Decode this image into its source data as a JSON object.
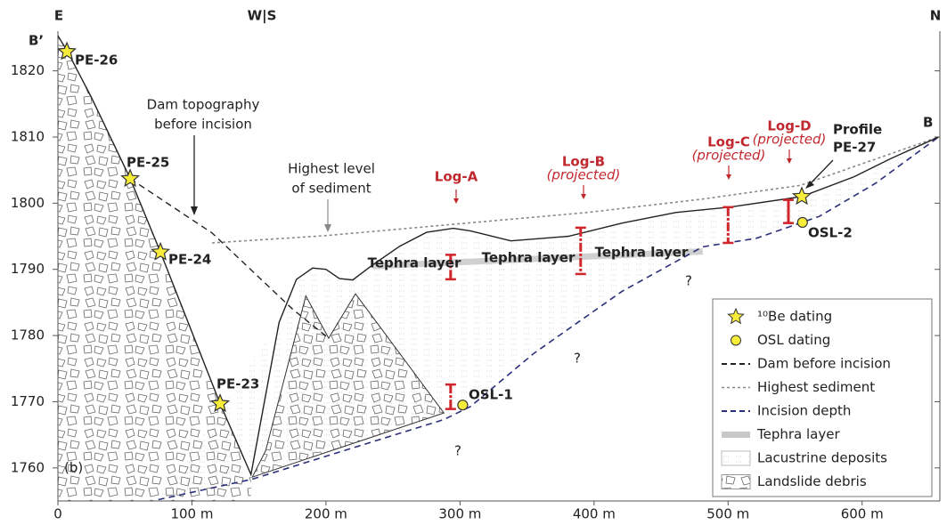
{
  "panel_label": "(b)",
  "section": {
    "left_end": "E",
    "bend": "W|S",
    "right_end": "N",
    "start": "B’",
    "end": "B"
  },
  "axes": {
    "xlim": [
      0,
      658
    ],
    "ylim": [
      1755,
      1826
    ],
    "xticks": [
      {
        "value": 0,
        "label": "0"
      },
      {
        "value": 100,
        "label": "100 m"
      },
      {
        "value": 200,
        "label": "200 m"
      },
      {
        "value": 300,
        "label": "300 m"
      },
      {
        "value": 400,
        "label": "400 m"
      },
      {
        "value": 500,
        "label": "500 m"
      },
      {
        "value": 600,
        "label": "600 m"
      }
    ],
    "yticks": [
      1760,
      1770,
      1780,
      1790,
      1800,
      1810,
      1820
    ]
  },
  "annotations": {
    "dam_topography": [
      "Dam topography",
      "before incision"
    ],
    "highest_level": [
      "Highest level",
      "of sediment"
    ],
    "tephra": [
      "Tephra layer",
      "Tephra layer",
      "Tephra layer"
    ],
    "unknown": [
      "?",
      "?",
      "?"
    ]
  },
  "profile": {
    "x": [
      0,
      7,
      25,
      54,
      76.5,
      121,
      144,
      165,
      178,
      190,
      200,
      210,
      220,
      235,
      255,
      275,
      295,
      308,
      338,
      381,
      421,
      461,
      501,
      555,
      594,
      621,
      657
    ],
    "y": [
      1825.3,
      1823,
      1816,
      1803.7,
      1792.6,
      1769.7,
      1759,
      1782,
      1788.5,
      1790.2,
      1790,
      1788.6,
      1788.4,
      1790.7,
      1793.5,
      1795.6,
      1796.2,
      1795.8,
      1794.3,
      1795,
      1797,
      1798.6,
      1799.4,
      1801,
      1804,
      1806.7,
      1810
    ]
  },
  "landslide_mound": {
    "x": [
      145,
      155,
      185,
      202,
      222,
      288
    ],
    "y": [
      1758.6,
      1762.6,
      1786,
      1779.6,
      1786.3,
      1768.3
    ]
  },
  "dam_before_incision": {
    "x": [
      54,
      115,
      175,
      202
    ],
    "y": [
      1803.7,
      1795.5,
      1784,
      1779.6
    ]
  },
  "highest_sediment": {
    "x": [
      115,
      200,
      300,
      395,
      480,
      554,
      657
    ],
    "y": [
      1794,
      1795.1,
      1796.9,
      1798.6,
      1800.6,
      1802.7,
      1810
    ]
  },
  "incision_depth": {
    "x": [
      75,
      145,
      288,
      308,
      355,
      421,
      481,
      521,
      568,
      610,
      657
    ],
    "y": [
      1755.2,
      1758.3,
      1767.3,
      1769.3,
      1777.3,
      1786.7,
      1793.4,
      1794.7,
      1798,
      1803,
      1810
    ]
  },
  "tephra_layer": {
    "x": [
      235,
      481
    ],
    "y": [
      1790.5,
      1792.7
    ]
  },
  "be_samples": [
    {
      "label": "PE-26",
      "x": 6.7,
      "y": 1822.9
    },
    {
      "label": "PE-25",
      "x": 53.9,
      "y": 1803.7
    },
    {
      "label": "PE-24",
      "x": 76.5,
      "y": 1792.6
    },
    {
      "label": "PE-23",
      "x": 121,
      "y": 1769.7
    }
  ],
  "profile_sample": {
    "label": [
      "Profile",
      "PE-27"
    ],
    "x": 555,
    "y": 1801
  },
  "osl_samples": [
    {
      "label": "OSL-1",
      "x": 302,
      "y": 1769.5
    },
    {
      "label": "OSL-2",
      "x": 555.5,
      "y": 1797.1
    }
  ],
  "logs": [
    {
      "label": "Log-A",
      "x": 293,
      "segments": [
        [
          1792.2,
          1788.5
        ],
        [
          1772.6,
          1768.9
        ]
      ]
    },
    {
      "label": "Log-B",
      "note": "(projected)",
      "x": 390,
      "segments": [
        [
          1796.3,
          1789.3
        ]
      ]
    },
    {
      "label": "Log-C",
      "note": "(projected)",
      "x": 500,
      "segments": [
        [
          1799.4,
          1794
        ]
      ]
    },
    {
      "label": "Log-D",
      "note": "(projected)",
      "x": 545,
      "segments": [
        [
          1800.5,
          1797
        ]
      ]
    }
  ],
  "legend": [
    "¹⁰Be dating",
    "OSL dating",
    "Dam before incision",
    "Highest sediment",
    "Incision depth",
    "Tephra layer",
    "Lacustrine deposits",
    "Landslide debris"
  ]
}
